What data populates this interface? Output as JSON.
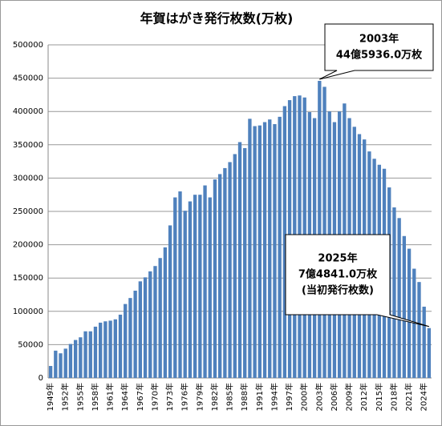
{
  "chart_data": {
    "type": "bar",
    "title": "年賀はがき発行枚数(万枚)",
    "categories": [
      "1949年",
      null,
      null,
      "1952年",
      null,
      null,
      "1955年",
      null,
      null,
      "1958年",
      null,
      null,
      "1961年",
      null,
      null,
      "1964年",
      null,
      null,
      "1967年",
      null,
      null,
      "1970年",
      null,
      null,
      "1973年",
      null,
      null,
      "1976年",
      null,
      null,
      "1979年",
      null,
      null,
      "1982年",
      null,
      null,
      "1985年",
      null,
      null,
      "1988年",
      null,
      null,
      "1991年",
      null,
      null,
      "1994年",
      null,
      null,
      "1997年",
      null,
      null,
      "2000年",
      null,
      null,
      "2003年",
      null,
      null,
      "2006年",
      null,
      null,
      "2009年",
      null,
      null,
      "2012年",
      null,
      null,
      "2015年",
      null,
      null,
      "2018年",
      null,
      null,
      "2021年",
      null,
      null,
      "2024年",
      null
    ],
    "values": [
      18000,
      41000,
      37000,
      44000,
      51000,
      57000,
      61000,
      70000,
      70000,
      77000,
      83000,
      85000,
      86000,
      88000,
      95000,
      111000,
      120000,
      131000,
      145000,
      151000,
      160000,
      168000,
      180000,
      196000,
      229000,
      271000,
      280000,
      251000,
      265000,
      275000,
      275000,
      289000,
      271000,
      298000,
      306000,
      315000,
      324000,
      336000,
      354000,
      345000,
      389000,
      378000,
      379000,
      384000,
      388000,
      381000,
      392000,
      408000,
      417000,
      423000,
      424000,
      421000,
      399000,
      390000,
      445936,
      437000,
      400000,
      384000,
      400000,
      412000,
      390000,
      377000,
      366000,
      358000,
      340000,
      329000,
      320000,
      314000,
      286000,
      256000,
      240000,
      213000,
      194000,
      164000,
      144000,
      107000,
      74841
    ],
    "color": "#4f81bd",
    "ylim": [
      0,
      500000
    ],
    "yticks": [
      0,
      50000,
      100000,
      150000,
      200000,
      250000,
      300000,
      350000,
      400000,
      450000,
      500000
    ],
    "grid": true,
    "annotations": [
      {
        "lines": [
          "2003年",
          "44億5936.0万枚"
        ]
      },
      {
        "lines": [
          "2025年",
          "7億4841.0万枚",
          "(当初発行枚数)"
        ]
      }
    ]
  }
}
